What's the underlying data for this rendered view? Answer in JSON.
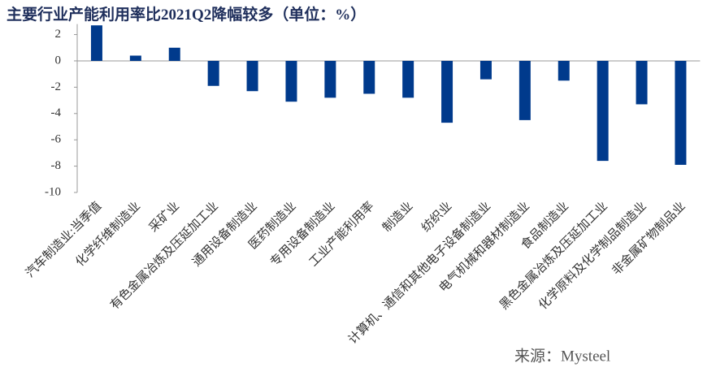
{
  "chart_data": {
    "type": "bar",
    "title": "主要行业产能利用率比2021Q2降幅较多（单位：%）",
    "source": "来源：Mysteel",
    "categories": [
      "汽车制造业:当季值",
      "化学纤维制造业",
      "采矿业",
      "有色金属冶炼及压延加工业",
      "通用设备制造业",
      "医药制造业",
      "专用设备制造业",
      "工业产能利用率",
      "制造业",
      "纺织业",
      "计算机、通信和其他电子设备制造业",
      "电气机械和器材制造业",
      "食品制造业",
      "黑色金属冶炼及压延加工业",
      "化学原料及化学制品制造业",
      "非金属矿物制品业"
    ],
    "values": [
      2.7,
      0.4,
      1.0,
      -1.9,
      -2.3,
      -3.1,
      -2.8,
      -2.5,
      -2.8,
      -4.7,
      -1.4,
      -4.5,
      -1.5,
      -7.6,
      -3.3,
      -7.9
    ],
    "color": "#003a8c",
    "ylim": [
      -10,
      2.8
    ],
    "yticks": [
      2,
      0,
      -2,
      -4,
      -6,
      -8,
      -10
    ],
    "grid": false
  }
}
